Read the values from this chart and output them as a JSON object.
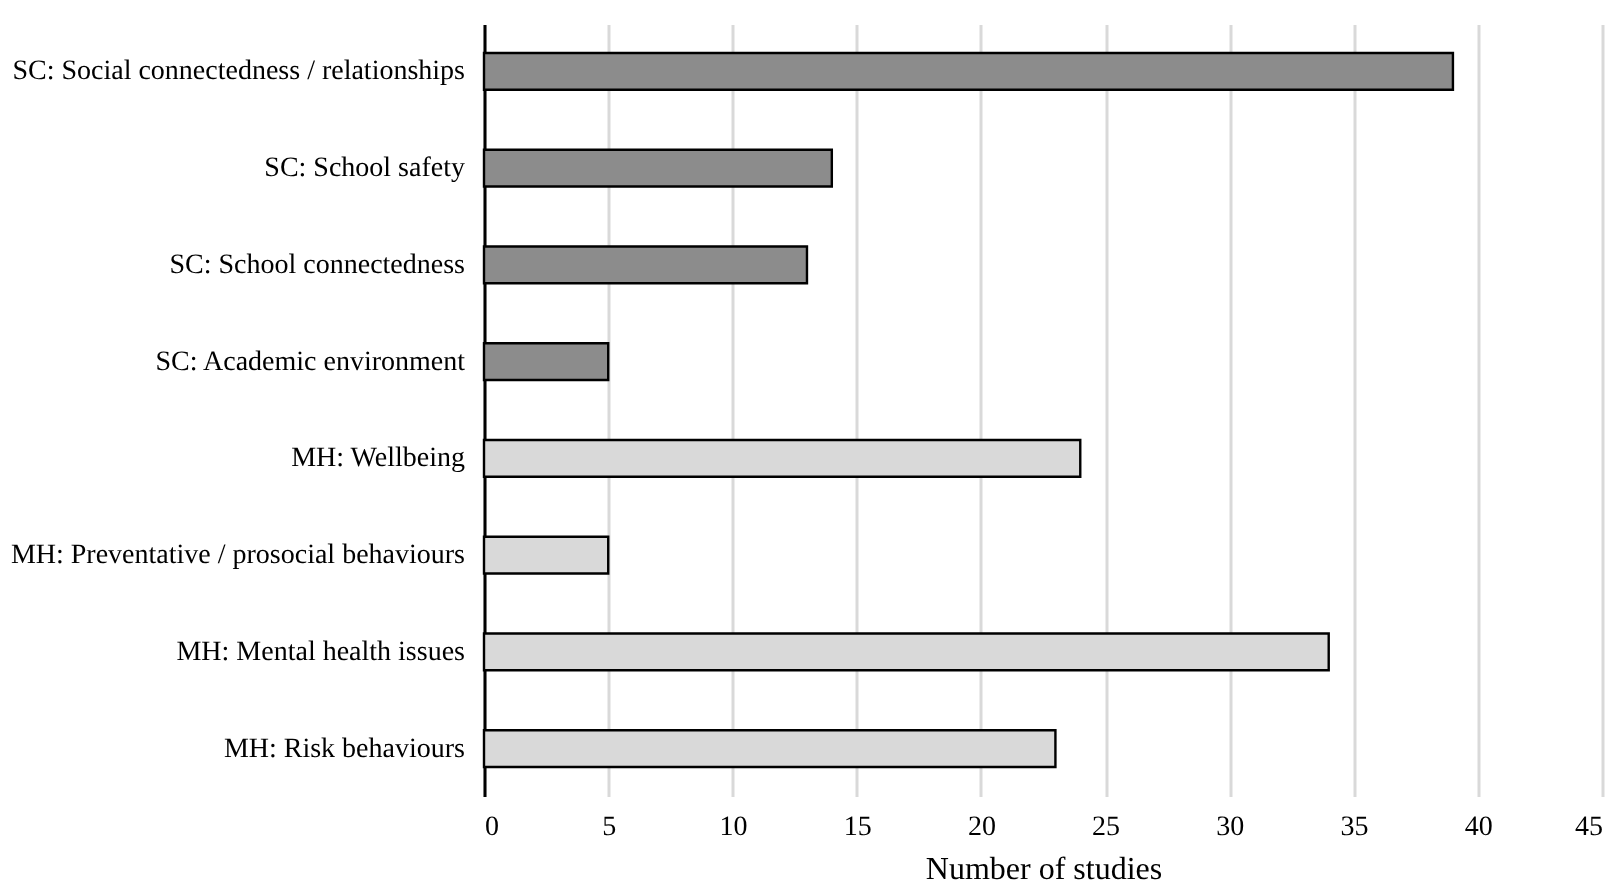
{
  "chart_data": {
    "type": "bar",
    "orientation": "horizontal",
    "xlabel": "Number of studies",
    "categories": [
      "SC: Social connectedness / relationships",
      "SC: School safety",
      "SC: School connectedness",
      "SC: Academic environment",
      "MH: Wellbeing",
      "MH: Preventative / prosocial behaviours",
      "MH: Mental health issues",
      "MH: Risk behaviours"
    ],
    "values": [
      39,
      14,
      13,
      5,
      24,
      5,
      34,
      23
    ],
    "colors": [
      "#8c8c8c",
      "#8c8c8c",
      "#8c8c8c",
      "#8c8c8c",
      "#d9d9d9",
      "#d9d9d9",
      "#d9d9d9",
      "#d9d9d9"
    ],
    "xlim": [
      0,
      45
    ],
    "xticks": [
      0,
      5,
      10,
      15,
      20,
      25,
      30,
      35,
      40,
      45
    ],
    "grid": "x"
  }
}
